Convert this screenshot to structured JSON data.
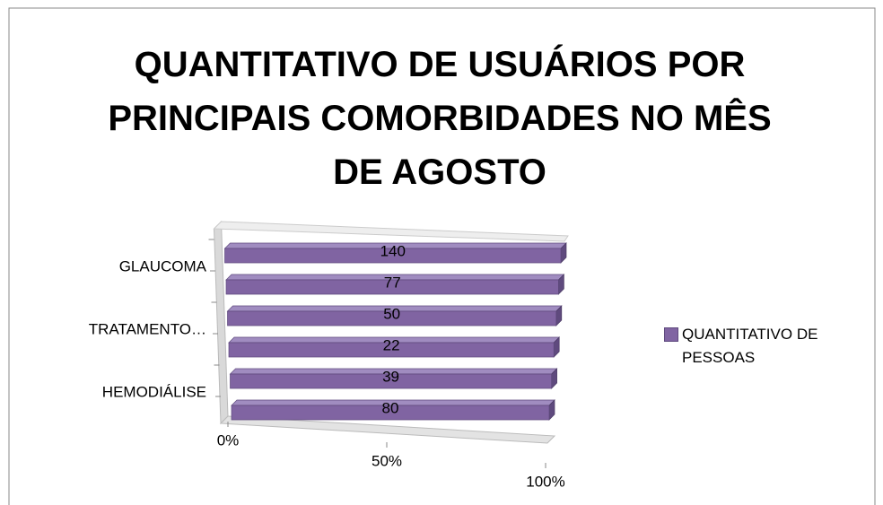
{
  "chart_data": {
    "type": "bar3d_percent",
    "title": "QUANTITATIVO  DE USUÁRIOS POR PRINCIPAIS COMORBIDADES NO MÊS DE AGOSTO",
    "categories": [
      "HEMODIÁLISE",
      null,
      "TRATAMENTO…",
      null,
      "GLAUCOMA",
      null
    ],
    "series": [
      {
        "name": "QUANTITATIVO DE PESSOAS",
        "color": "#8064a2",
        "values": [
          80,
          39,
          22,
          50,
          77,
          140
        ]
      }
    ],
    "xlim": [
      0,
      100
    ],
    "xticks": [
      {
        "value": 0,
        "label": "0%"
      },
      {
        "value": 50,
        "label": "50%"
      },
      {
        "value": 100,
        "label": "100%"
      }
    ],
    "legend": "right"
  }
}
